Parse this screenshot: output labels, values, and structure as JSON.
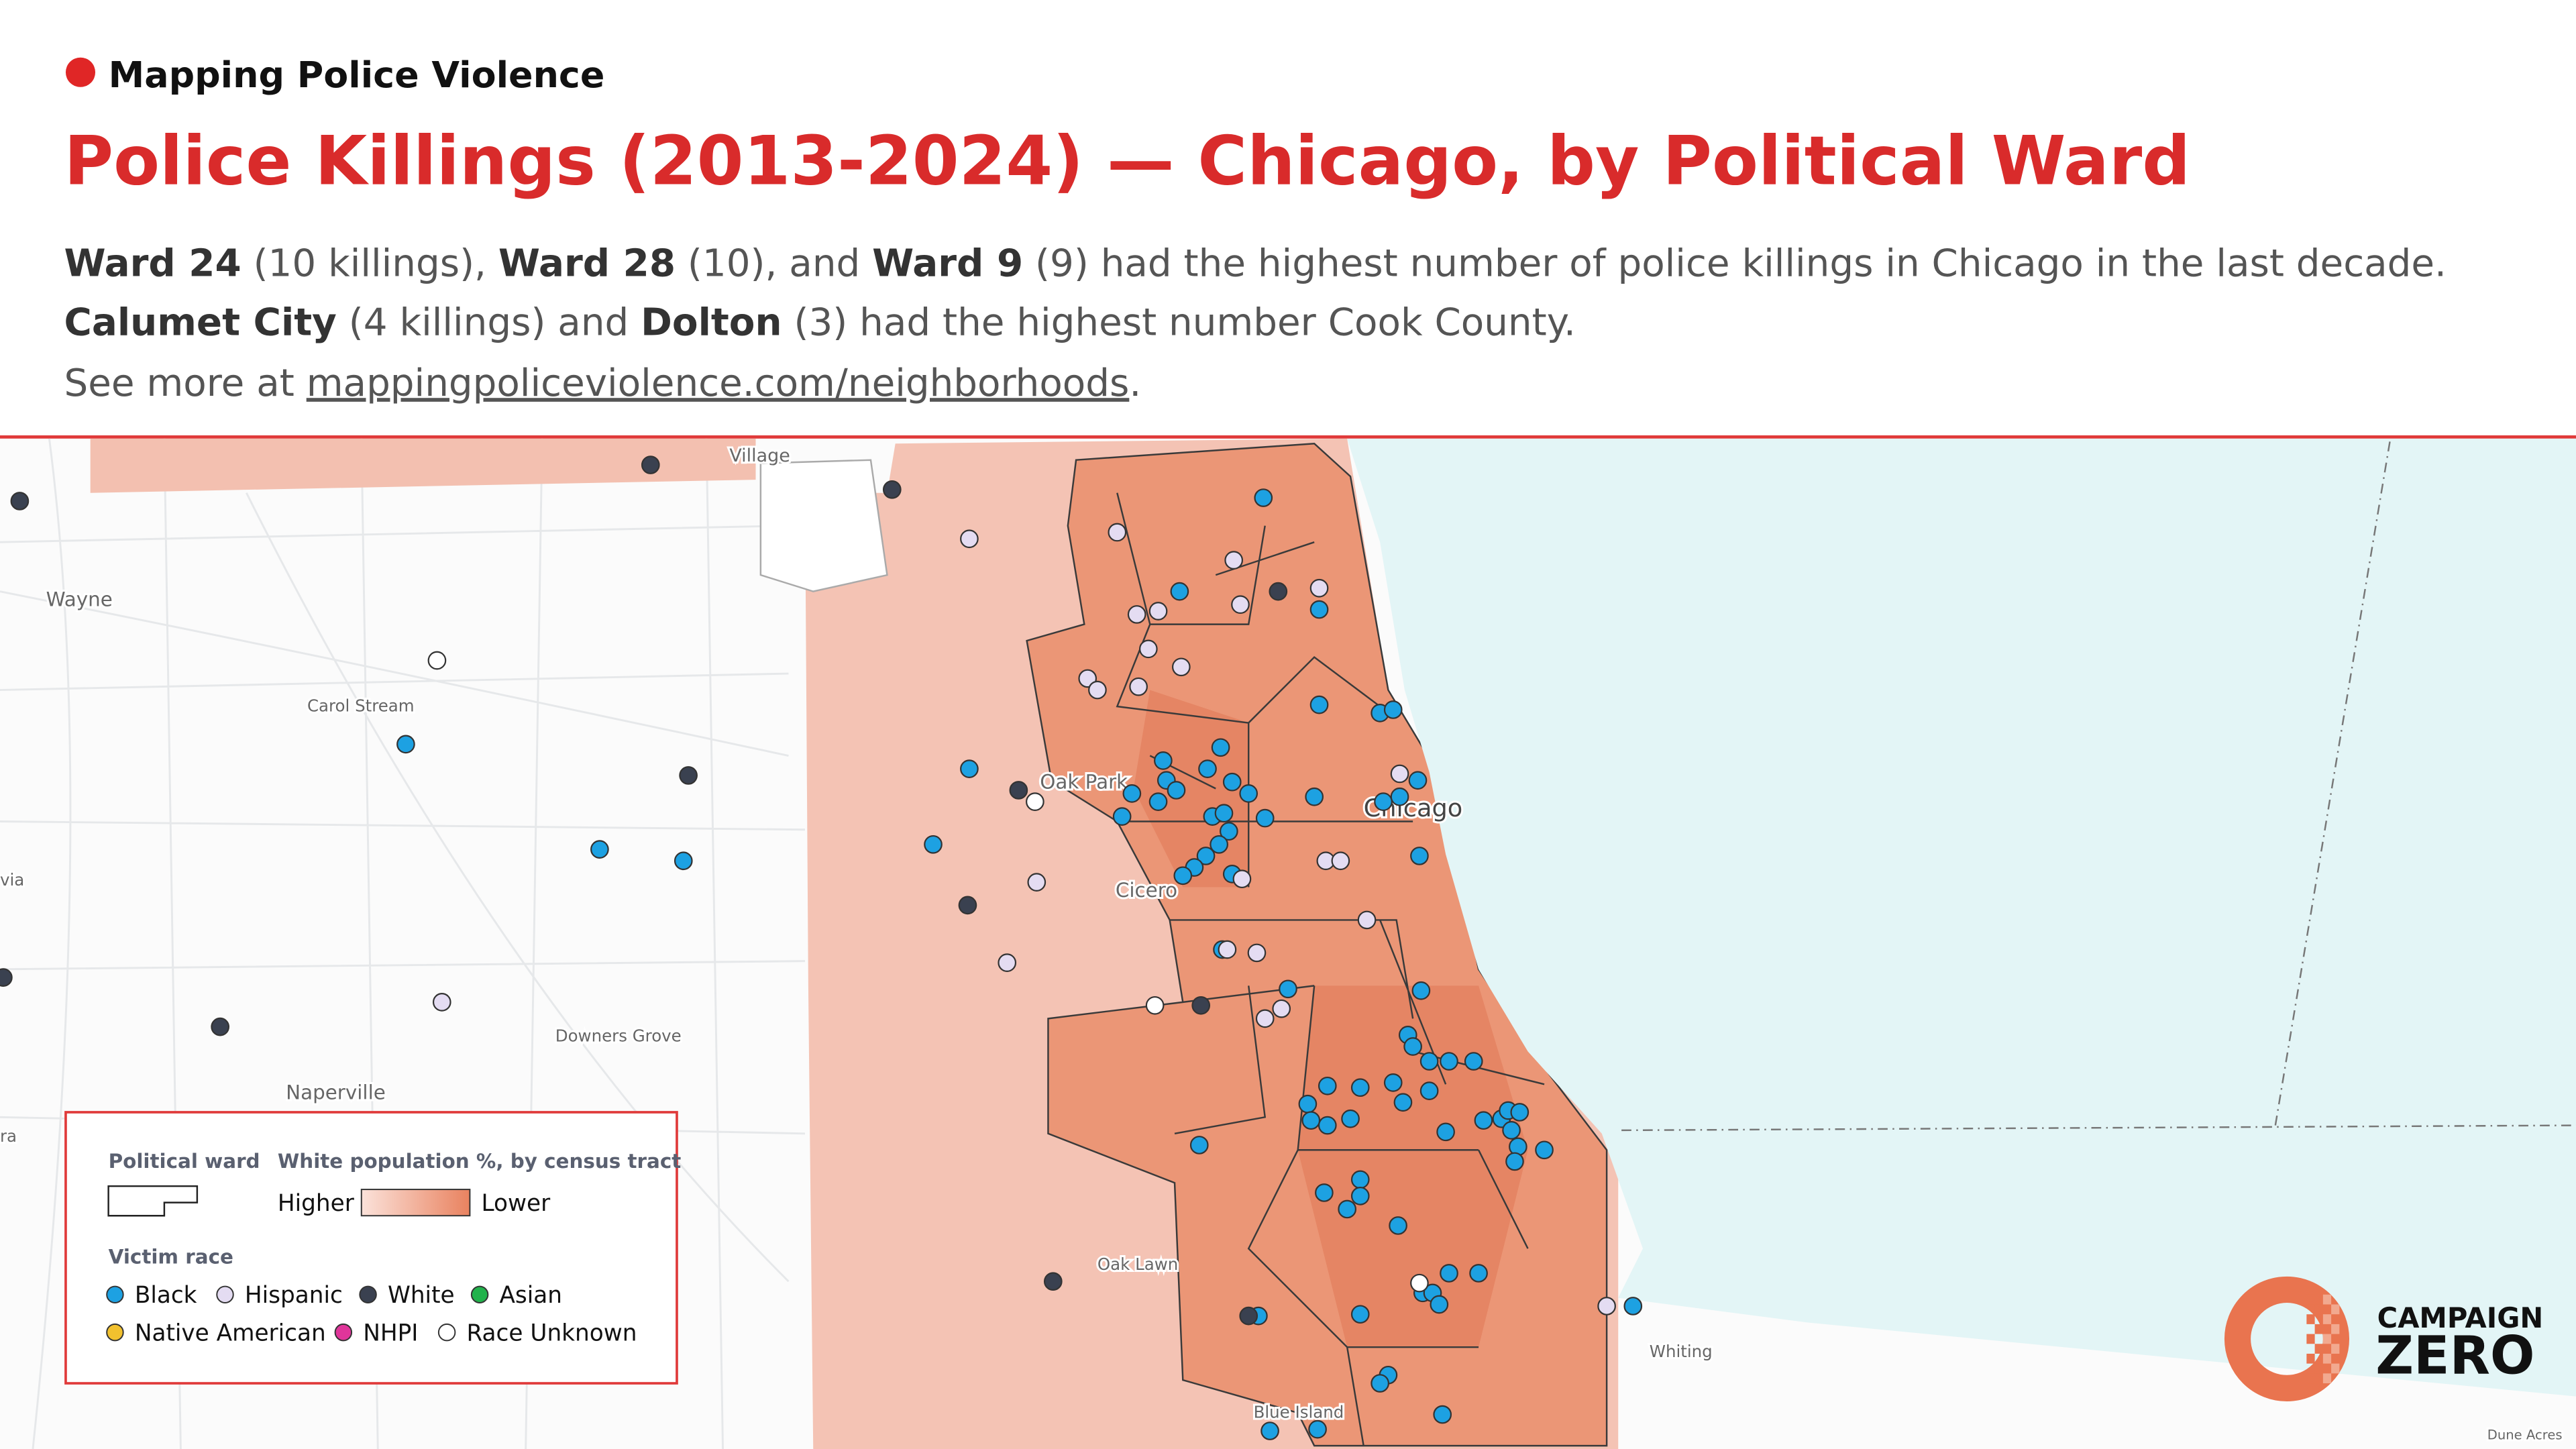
{
  "header": {
    "brand": "Mapping Police Violence",
    "title": "Police Killings (2013-2024) — Chicago, by Political Ward",
    "lines": [
      [
        {
          "text": "Ward 24",
          "bold": true
        },
        {
          "text": " (10 killings), ",
          "bold": false
        },
        {
          "text": "Ward 28",
          "bold": true
        },
        {
          "text": " (10), and ",
          "bold": false
        },
        {
          "text": "Ward 9",
          "bold": true
        },
        {
          "text": " (9) had the highest number of police killings in Chicago in the last decade.",
          "bold": false
        }
      ],
      [
        {
          "text": "Calumet City",
          "bold": true
        },
        {
          "text": " (4 killings) and ",
          "bold": false
        },
        {
          "text": "Dolton",
          "bold": true
        },
        {
          "text": " (3) had the highest number Cook County.",
          "bold": false
        }
      ]
    ],
    "more_prefix": "See more at ",
    "more_link": "mappingpoliceviolence.com/neighborhoods",
    "more_suffix": "."
  },
  "map": {
    "labels": [
      "Village",
      "Wayne",
      "Carol Stream",
      "Oak Park",
      "Cicero",
      "Chicago",
      "Downers Grove",
      "Naperville",
      "Oak Lawn",
      "Blue Island",
      "Whiting",
      "Dune Acres",
      "via",
      "ra"
    ]
  },
  "legend": {
    "ward_title": "Political ward",
    "pop_title": "White population %, by census tract",
    "higher": "Higher",
    "lower": "Lower",
    "race_title": "Victim race",
    "races": [
      {
        "label": "Black",
        "color": "#1da1e2"
      },
      {
        "label": "Hispanic",
        "color": "#e4dcf2"
      },
      {
        "label": "White",
        "color": "#3a4150"
      },
      {
        "label": "Asian",
        "color": "#22b24c"
      },
      {
        "label": "Native American",
        "color": "#f2c12e"
      },
      {
        "label": "NHPI",
        "color": "#e0359a"
      },
      {
        "label": "Race Unknown",
        "color": "#ffffff"
      }
    ]
  },
  "logo": {
    "line1": "CAMPAIGN",
    "line2": "ZERO"
  }
}
